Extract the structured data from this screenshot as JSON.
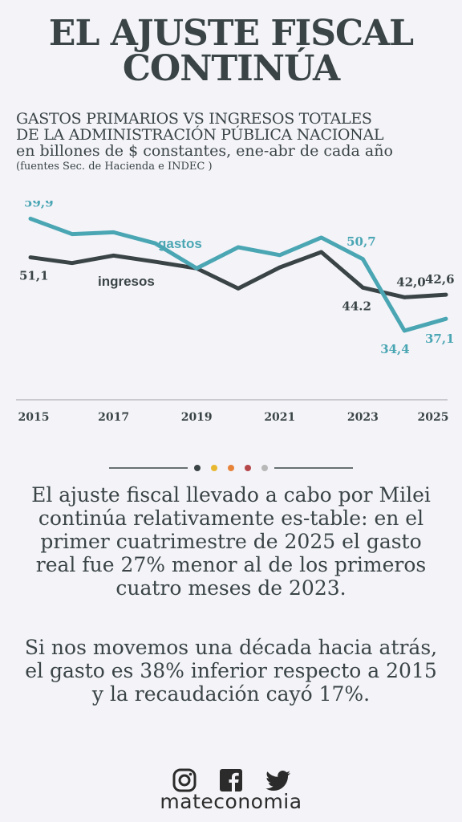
{
  "title": {
    "line1": "EL AJUSTE FISCAL",
    "line2": "CONTINÚA"
  },
  "subtitle": {
    "line1": "GASTOS PRIMARIOS VS INGRESOS TOTALES",
    "line2": "DE LA ADMINISTRACIÓN PÚBLICA NACIONAL",
    "line3": "en billones de $ constantes, ene-abr de cada año",
    "source": "(fuentes Sec. de Hacienda e INDEC )"
  },
  "chart_data": {
    "type": "line",
    "x": [
      2015,
      2016,
      2017,
      2018,
      2019,
      2020,
      2021,
      2022,
      2023,
      2024,
      2025
    ],
    "x_ticks": [
      "2015",
      "2017",
      "2019",
      "2021",
      "2023",
      "2025"
    ],
    "ylim": [
      30,
      64
    ],
    "series": [
      {
        "name": "gastos",
        "color": "#4aa6b3",
        "values": [
          59.9,
          56.4,
          56.8,
          54.3,
          48.6,
          53.4,
          51.6,
          55.6,
          50.7,
          34.4,
          37.1
        ]
      },
      {
        "name": "ingresos",
        "color": "#3a4446",
        "values": [
          51.1,
          49.8,
          51.5,
          50.1,
          48.6,
          44.0,
          48.8,
          52.3,
          44.2,
          42.0,
          42.6
        ]
      }
    ],
    "data_labels": [
      {
        "series": "gastos",
        "x": 2015,
        "text": "59,9"
      },
      {
        "series": "ingresos",
        "x": 2015,
        "text": "51,1"
      },
      {
        "series": "gastos",
        "x": 2023,
        "text": "50,7"
      },
      {
        "series": "ingresos",
        "x": 2023,
        "text": "44.2"
      },
      {
        "series": "ingresos",
        "x": 2024,
        "text": "42,0"
      },
      {
        "series": "ingresos",
        "x": 2025,
        "text": "42,6"
      },
      {
        "series": "gastos",
        "x": 2024,
        "text": "34,4"
      },
      {
        "series": "gastos",
        "x": 2025,
        "text": "37,1"
      }
    ],
    "grid": false,
    "legend": "inline labels"
  },
  "separator_colors": [
    "#3a4446",
    "#e8b830",
    "#e8833a",
    "#b5474b",
    "#b8b8b8"
  ],
  "body": {
    "p1": "El ajuste fiscal llevado a cabo por Milei continúa relativamente es-table: en el primer cuatrimestre de 2025 el gasto real fue 27% menor al de los primeros cuatro meses de 2023.",
    "p2": "Si nos movemos una década hacia atrás, el gasto es 38% inferior respecto a 2015 y la recaudación cayó 17%."
  },
  "social_icons": [
    "instagram-icon",
    "facebook-icon",
    "twitter-icon"
  ],
  "brand": "mateconomia"
}
